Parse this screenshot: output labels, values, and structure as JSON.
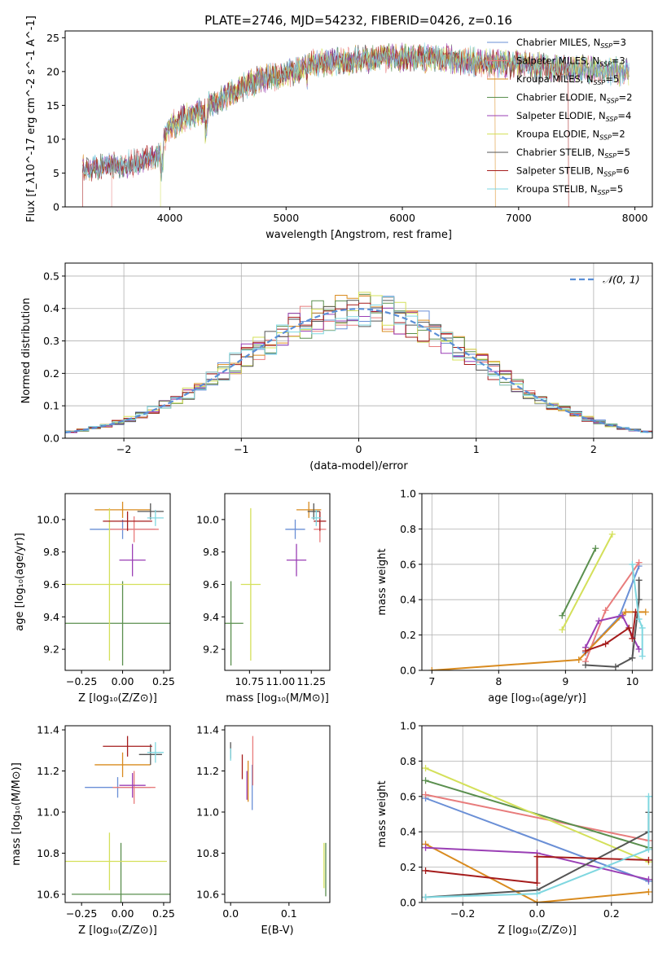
{
  "figure_title": "PLATE=2746, MJD=54232, FIBERID=0426, z=0.16",
  "colors": {
    "Chabrier MILES": "#6a8fd6",
    "Salpeter MILES": "#e87c7c",
    "Kroupa MILES": "#d98b1f",
    "Chabrier ELODIE": "#5a8f4e",
    "Salpeter ELODIE": "#9a3fb5",
    "Kroupa ELODIE": "#d4e05a",
    "Chabrier STELIB": "#555555",
    "Salpeter STELIB": "#a51c1c",
    "Kroupa STELIB": "#7fd7e0",
    "gaussian": "#5b8fd6"
  },
  "chart_data": [
    {
      "panel": "spectrum",
      "type": "line",
      "xlabel": "wavelength [Angstrom, rest frame]",
      "ylabel": "Flux [f_λ10^-17 erg cm^-2 s^-1 A^-1]",
      "xlim": [
        3100,
        8150
      ],
      "ylim": [
        0,
        26
      ],
      "xticks": [
        4000,
        5000,
        6000,
        7000,
        8000
      ],
      "yticks": [
        0,
        5,
        10,
        15,
        20,
        25
      ],
      "legend_position": "right",
      "legend": [
        {
          "name": "Chabrier MILES",
          "label": "Chabrier MILES, N",
          "n": "3"
        },
        {
          "name": "Salpeter MILES",
          "label": "Salpeter MILES, N",
          "n": "3"
        },
        {
          "name": "Kroupa MILES",
          "label": "Kroupa MILES, N",
          "n": "5"
        },
        {
          "name": "Chabrier ELODIE",
          "label": "Chabrier ELODIE, N",
          "n": "2"
        },
        {
          "name": "Salpeter ELODIE",
          "label": "Salpeter ELODIE, N",
          "n": "4"
        },
        {
          "name": "Kroupa ELODIE",
          "label": "Kroupa ELODIE, N",
          "n": "2"
        },
        {
          "name": "Chabrier STELIB",
          "label": "Chabrier STELIB, N",
          "n": "5"
        },
        {
          "name": "Salpeter STELIB",
          "label": "Salpeter STELIB, N",
          "n": "6"
        },
        {
          "name": "Kroupa STELIB",
          "label": "Kroupa STELIB, N",
          "n": "5"
        }
      ],
      "n_subscript": "SSP",
      "continuum": {
        "x": [
          3250,
          3500,
          3700,
          3900,
          4000,
          4200,
          4500,
          4800,
          5000,
          5200,
          5500,
          5800,
          6000,
          6300,
          6600,
          7000,
          7300,
          7500,
          7900
        ],
        "y": [
          5.5,
          6.0,
          6.5,
          7.5,
          12.0,
          13.5,
          16.5,
          19.0,
          19.5,
          21.0,
          21.5,
          22.0,
          22.0,
          22.0,
          21.5,
          21.0,
          20.5,
          20.5,
          20.0
        ]
      }
    },
    {
      "panel": "residuals",
      "type": "step",
      "xlabel": "(data-model)/error",
      "ylabel": "Normed distribution",
      "xlim": [
        -2.5,
        2.5
      ],
      "ylim": [
        0,
        0.54
      ],
      "xticks": [
        -2,
        -1,
        0,
        1,
        2
      ],
      "yticks": [
        0.0,
        0.1,
        0.2,
        0.3,
        0.4,
        0.5
      ],
      "grid": true,
      "legend_position": "top-right",
      "reference_label": "𝒩(0, 1)"
    },
    {
      "panel": "age_vs_Z",
      "type": "errorbar",
      "xlabel": "Z [log₁₀(Z/Z⊙)]",
      "ylabel": "age  [log₁₀(age/yr)]",
      "xlim": [
        -0.35,
        0.29
      ],
      "ylim": [
        9.07,
        10.16
      ],
      "xticks": [
        -0.25,
        0.0,
        0.25
      ],
      "yticks": [
        9.2,
        9.4,
        9.6,
        9.8,
        10.0
      ],
      "points": [
        {
          "series": "Chabrier MILES",
          "x": 0.0,
          "xerr": 0.2,
          "y": 9.94,
          "yerr": 0.06
        },
        {
          "series": "Salpeter MILES",
          "x": 0.07,
          "xerr": 0.15,
          "y": 9.94,
          "yerr": 0.08
        },
        {
          "series": "Kroupa MILES",
          "x": 0.0,
          "xerr": 0.17,
          "y": 10.06,
          "yerr": 0.05
        },
        {
          "series": "Chabrier ELODIE",
          "x": 0.0,
          "xerr": 0.35,
          "y": 9.36,
          "yerr": 0.26
        },
        {
          "series": "Salpeter ELODIE",
          "x": 0.06,
          "xerr": 0.08,
          "y": 9.75,
          "yerr": 0.1
        },
        {
          "series": "Kroupa ELODIE",
          "x": -0.08,
          "xerr": 0.4,
          "y": 9.6,
          "yerr": 0.47
        },
        {
          "series": "Chabrier STELIB",
          "x": 0.17,
          "xerr": 0.08,
          "y": 10.05,
          "yerr": 0.05
        },
        {
          "series": "Salpeter STELIB",
          "x": 0.03,
          "xerr": 0.15,
          "y": 9.99,
          "yerr": 0.06
        },
        {
          "series": "Kroupa STELIB",
          "x": 0.2,
          "xerr": 0.05,
          "y": 10.01,
          "yerr": 0.05
        }
      ]
    },
    {
      "panel": "age_vs_mass",
      "type": "errorbar",
      "xlabel": "mass [log₁₀(M/M⊙)]",
      "ylabel": "",
      "xlim": [
        10.55,
        11.4
      ],
      "ylim": [
        9.07,
        10.16
      ],
      "xticks": [
        10.75,
        11.0,
        11.25
      ],
      "xtick_labels": [
        "10.75",
        "11.00",
        "11.25"
      ],
      "yticks": [
        9.2,
        9.4,
        9.6,
        9.8,
        10.0
      ],
      "points": [
        {
          "series": "Chabrier MILES",
          "x": 11.12,
          "xerr": 0.08,
          "y": 9.94,
          "yerr": 0.06
        },
        {
          "series": "Salpeter MILES",
          "x": 11.32,
          "xerr": 0.05,
          "y": 9.94,
          "yerr": 0.08
        },
        {
          "series": "Kroupa MILES",
          "x": 11.23,
          "xerr": 0.1,
          "y": 10.06,
          "yerr": 0.05
        },
        {
          "series": "Chabrier ELODIE",
          "x": 10.6,
          "xerr": 0.1,
          "y": 9.36,
          "yerr": 0.26
        },
        {
          "series": "Salpeter ELODIE",
          "x": 11.13,
          "xerr": 0.08,
          "y": 9.75,
          "yerr": 0.1
        },
        {
          "series": "Kroupa ELODIE",
          "x": 10.76,
          "xerr": 0.08,
          "y": 9.6,
          "yerr": 0.47
        },
        {
          "series": "Chabrier STELIB",
          "x": 11.27,
          "xerr": 0.05,
          "y": 10.05,
          "yerr": 0.05
        },
        {
          "series": "Salpeter STELIB",
          "x": 11.32,
          "xerr": 0.05,
          "y": 9.99,
          "yerr": 0.06
        },
        {
          "series": "Kroupa STELIB",
          "x": 11.29,
          "xerr": 0.04,
          "y": 10.01,
          "yerr": 0.05
        }
      ]
    },
    {
      "panel": "weight_vs_age",
      "type": "line",
      "xlabel": "age  [log₁₀(age/yr)]",
      "ylabel": "mass weight",
      "xlim": [
        6.85,
        10.3
      ],
      "ylim": [
        0,
        1.0
      ],
      "xticks": [
        7,
        8,
        9,
        10
      ],
      "yticks": [
        0.0,
        0.2,
        0.4,
        0.6,
        0.8,
        1.0
      ],
      "grid": true,
      "series": [
        {
          "name": "Chabrier MILES",
          "x": [
            9.3,
            9.8,
            10.1
          ],
          "y": [
            0.1,
            0.3,
            0.59
          ]
        },
        {
          "name": "Salpeter MILES",
          "x": [
            9.3,
            9.6,
            10.1
          ],
          "y": [
            0.05,
            0.34,
            0.61
          ]
        },
        {
          "name": "Kroupa MILES",
          "x": [
            7.0,
            9.2,
            9.9,
            10.2
          ],
          "y": [
            0.0,
            0.06,
            0.33,
            0.33
          ]
        },
        {
          "name": "Chabrier ELODIE",
          "x": [
            8.95,
            9.45
          ],
          "y": [
            0.31,
            0.69
          ]
        },
        {
          "name": "Salpeter ELODIE",
          "x": [
            9.3,
            9.5,
            9.85,
            10.1
          ],
          "y": [
            0.13,
            0.28,
            0.31,
            0.12
          ]
        },
        {
          "name": "Kroupa ELODIE",
          "x": [
            8.95,
            9.7
          ],
          "y": [
            0.23,
            0.77
          ]
        },
        {
          "name": "Chabrier STELIB",
          "x": [
            9.3,
            9.75,
            10.0,
            10.1,
            10.1
          ],
          "y": [
            0.03,
            0.02,
            0.07,
            0.4,
            0.51
          ]
        },
        {
          "name": "Salpeter STELIB",
          "x": [
            9.3,
            9.6,
            9.95,
            10.0,
            10.05
          ],
          "y": [
            0.11,
            0.15,
            0.24,
            0.18,
            0.33
          ]
        },
        {
          "name": "Kroupa STELIB",
          "x": [
            10.0,
            10.1,
            10.15,
            10.15
          ],
          "y": [
            0.6,
            0.29,
            0.24,
            0.08
          ]
        }
      ]
    },
    {
      "panel": "mass_vs_Z",
      "type": "errorbar",
      "xlabel": "Z [log₁₀(Z/Z⊙)]",
      "ylabel": "mass [log₁₀(M/M⊙)]",
      "xlim": [
        -0.35,
        0.29
      ],
      "ylim": [
        10.56,
        11.42
      ],
      "xticks": [
        -0.25,
        0.0,
        0.25
      ],
      "yticks": [
        10.6,
        10.8,
        11.0,
        11.2,
        11.4
      ],
      "points": [
        {
          "series": "Chabrier MILES",
          "x": -0.03,
          "xerr": 0.2,
          "y": 11.12,
          "yerr": 0.05
        },
        {
          "series": "Salpeter MILES",
          "x": 0.07,
          "xerr": 0.13,
          "y": 11.12,
          "yerr": 0.08
        },
        {
          "series": "Kroupa MILES",
          "x": 0.0,
          "xerr": 0.17,
          "y": 11.23,
          "yerr": 0.06
        },
        {
          "series": "Chabrier ELODIE",
          "x": -0.01,
          "xerr": 0.3,
          "y": 10.6,
          "yerr": 0.25
        },
        {
          "series": "Salpeter ELODIE",
          "x": 0.06,
          "xerr": 0.08,
          "y": 11.13,
          "yerr": 0.06
        },
        {
          "series": "Kroupa ELODIE",
          "x": -0.08,
          "xerr": 0.35,
          "y": 10.76,
          "yerr": 0.14
        },
        {
          "series": "Chabrier STELIB",
          "x": 0.17,
          "xerr": 0.07,
          "y": 11.28,
          "yerr": 0.05
        },
        {
          "series": "Salpeter STELIB",
          "x": 0.03,
          "xerr": 0.15,
          "y": 11.32,
          "yerr": 0.05
        },
        {
          "series": "Kroupa STELIB",
          "x": 0.2,
          "xerr": 0.05,
          "y": 11.29,
          "yerr": 0.05
        }
      ]
    },
    {
      "panel": "mass_vs_EBV",
      "type": "errorbar",
      "xlabel": "E(B-V)",
      "ylabel": "",
      "xlim": [
        -0.01,
        0.17
      ],
      "ylim": [
        10.56,
        11.42
      ],
      "xticks": [
        0.0,
        0.1
      ],
      "yticks": [
        10.6,
        10.8,
        11.0,
        11.2,
        11.4
      ],
      "points": [
        {
          "series": "Chabrier MILES",
          "x": 0.037,
          "xerr": 0.0,
          "y": 11.12,
          "yerr": 0.11
        },
        {
          "series": "Salpeter MILES",
          "x": 0.038,
          "xerr": 0.0,
          "y": 11.25,
          "yerr": 0.12
        },
        {
          "series": "Kroupa MILES",
          "x": 0.03,
          "xerr": 0.0,
          "y": 11.15,
          "yerr": 0.1
        },
        {
          "series": "Chabrier ELODIE",
          "x": 0.163,
          "xerr": 0.0,
          "y": 10.72,
          "yerr": 0.13
        },
        {
          "series": "Salpeter ELODIE",
          "x": 0.028,
          "xerr": 0.0,
          "y": 11.13,
          "yerr": 0.07
        },
        {
          "series": "Kroupa ELODIE",
          "x": 0.16,
          "xerr": 0.0,
          "y": 10.74,
          "yerr": 0.11
        },
        {
          "series": "Chabrier STELIB",
          "x": 0.0,
          "xerr": 0.0,
          "y": 11.3,
          "yerr": 0.04
        },
        {
          "series": "Salpeter STELIB",
          "x": 0.02,
          "xerr": 0.0,
          "y": 11.22,
          "yerr": 0.06
        },
        {
          "series": "Kroupa STELIB",
          "x": 0.0,
          "xerr": 0.0,
          "y": 11.28,
          "yerr": 0.03
        }
      ]
    },
    {
      "panel": "weight_vs_Z",
      "type": "line",
      "xlabel": "Z [log₁₀(Z/Z⊙)]",
      "ylabel": "mass weight",
      "xlim": [
        -0.31,
        0.31
      ],
      "ylim": [
        0,
        1.0
      ],
      "xticks": [
        -0.2,
        0.0,
        0.2
      ],
      "yticks": [
        0.0,
        0.2,
        0.4,
        0.6,
        0.8,
        1.0
      ],
      "grid": true,
      "series": [
        {
          "name": "Chabrier MILES",
          "x": [
            -0.3,
            0.3
          ],
          "y": [
            0.59,
            0.12
          ]
        },
        {
          "name": "Salpeter MILES",
          "x": [
            -0.3,
            0.3
          ],
          "y": [
            0.61,
            0.35
          ]
        },
        {
          "name": "Kroupa MILES",
          "x": [
            -0.3,
            0.0,
            0.3
          ],
          "y": [
            0.33,
            0.0,
            0.06
          ]
        },
        {
          "name": "Chabrier ELODIE",
          "x": [
            -0.3,
            0.3
          ],
          "y": [
            0.69,
            0.31
          ]
        },
        {
          "name": "Salpeter ELODIE",
          "x": [
            -0.3,
            0.0,
            0.3
          ],
          "y": [
            0.31,
            0.28,
            0.13
          ]
        },
        {
          "name": "Kroupa ELODIE",
          "x": [
            -0.3,
            0.3
          ],
          "y": [
            0.76,
            0.23
          ]
        },
        {
          "name": "Chabrier STELIB",
          "x": [
            -0.3,
            0.0,
            0.3,
            0.3
          ],
          "y": [
            0.03,
            0.07,
            0.4,
            0.51
          ]
        },
        {
          "name": "Salpeter STELIB",
          "x": [
            -0.3,
            0.0,
            0.0,
            0.3
          ],
          "y": [
            0.18,
            0.11,
            0.26,
            0.24
          ]
        },
        {
          "name": "Kroupa STELIB",
          "x": [
            -0.3,
            0.0,
            0.3,
            0.3
          ],
          "y": [
            0.03,
            0.05,
            0.3,
            0.6
          ]
        }
      ]
    }
  ]
}
